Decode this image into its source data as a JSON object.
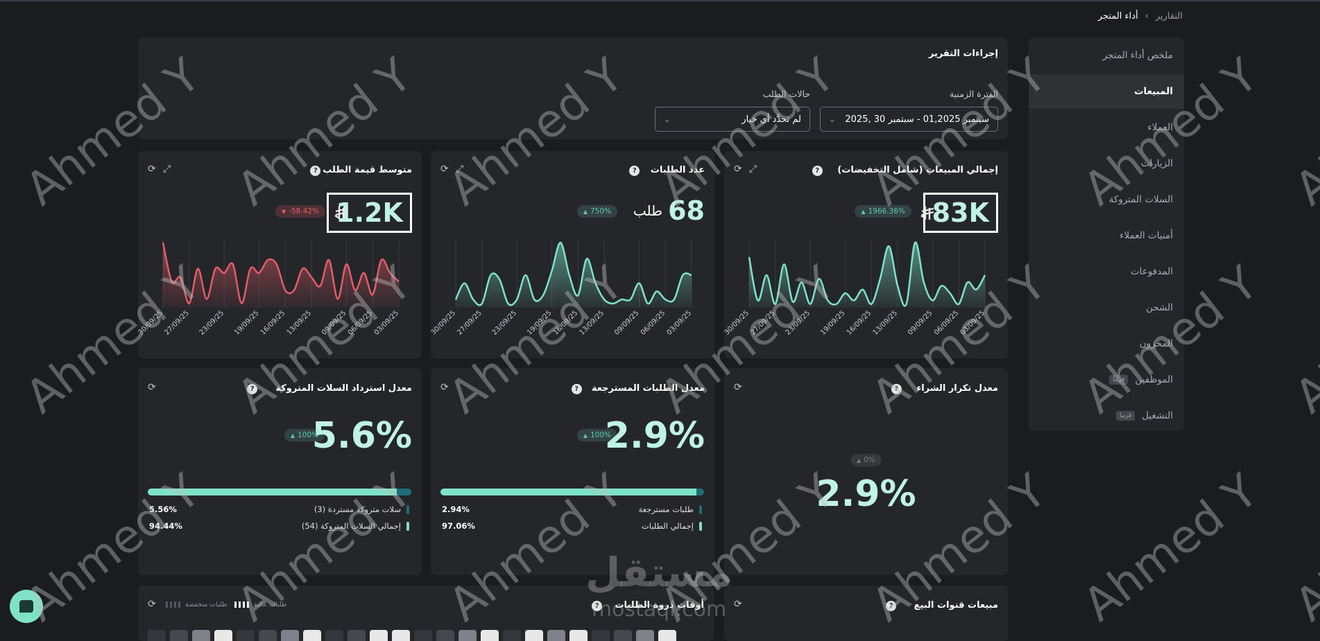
{
  "breadcrumb": [
    "التقارير",
    "أداء المتجر"
  ],
  "sidebar": {
    "items": [
      {
        "label": "ملخص أداء المتجر",
        "active": false
      },
      {
        "label": "المبيعات",
        "active": true
      },
      {
        "label": "العملاء",
        "active": false
      },
      {
        "label": "الزيارات",
        "active": false
      },
      {
        "label": "السلات المتروكة",
        "active": false
      },
      {
        "label": "أمنيات العملاء",
        "active": false
      },
      {
        "label": "المدفوعات",
        "active": false
      },
      {
        "label": "الشحن",
        "active": false
      },
      {
        "label": "المخزون",
        "active": false
      },
      {
        "label": "الموظفين",
        "active": false,
        "badge": "قريبا"
      },
      {
        "label": "التشغيل",
        "active": false,
        "badge": "قريبا"
      }
    ]
  },
  "report_actions": {
    "title": "إجراءات التقرير",
    "period_label": "الفترة الزمنية",
    "period_value": "سبتمبر 01,2025 - سبتمبر 30 ,2025",
    "status_label": "حالات الطلب",
    "status_value": "لم تحدَّد أي خيار"
  },
  "kpi_cards": [
    {
      "title": "إجمالي المبيعات (شامل التخفيضات)",
      "value": "83K",
      "currency": true,
      "change": "1966.36%",
      "trend": "up",
      "highlight": true,
      "chart": {
        "type": "line",
        "color": "#7ee3c6",
        "categories": [
          "30/09/25",
          null,
          null,
          "27/09/25",
          null,
          null,
          null,
          "23/09/25",
          null,
          null,
          null,
          "19/09/25",
          null,
          null,
          "16/09/25",
          null,
          null,
          "13/09/25",
          null,
          null,
          null,
          "09/09/25",
          null,
          null,
          "06/09/25",
          null,
          null,
          "03/09/25"
        ],
        "values": [
          70,
          10,
          45,
          5,
          60,
          8,
          35,
          5,
          40,
          10,
          5,
          20,
          10,
          25,
          5,
          40,
          85,
          30,
          5,
          90,
          35,
          10,
          30,
          20,
          5,
          35,
          25,
          45
        ]
      }
    },
    {
      "title": "عدد الطلبات",
      "value": "68",
      "unit": "طلب",
      "currency": false,
      "change": "750%",
      "trend": "up",
      "highlight": false,
      "chart": {
        "type": "line",
        "color": "#7ee3c6",
        "categories": [
          "30/09/25",
          null,
          null,
          "27/09/25",
          null,
          null,
          null,
          "23/09/25",
          null,
          null,
          null,
          "19/09/25",
          null,
          null,
          "16/09/25",
          null,
          null,
          "13/09/25",
          null,
          null,
          null,
          "09/09/25",
          null,
          null,
          "06/09/25",
          null,
          null,
          "03/09/25"
        ],
        "values": [
          10,
          30,
          10,
          5,
          40,
          35,
          5,
          10,
          40,
          10,
          15,
          45,
          80,
          40,
          15,
          60,
          30,
          10,
          5,
          10,
          10,
          30,
          5,
          20,
          10,
          10,
          40,
          40
        ]
      }
    },
    {
      "title": "متوسط قيمة الطلب",
      "value": "1.2K",
      "currency": true,
      "change": "-58.42%",
      "trend": "down",
      "highlight": true,
      "chart": {
        "type": "line",
        "color": "#e35d68",
        "categories": [
          "30/09/25",
          null,
          null,
          "27/09/25",
          null,
          null,
          null,
          "23/09/25",
          null,
          null,
          null,
          "19/09/25",
          null,
          null,
          "16/09/25",
          null,
          null,
          "13/09/25",
          null,
          null,
          null,
          "09/09/25",
          null,
          null,
          "06/09/25",
          null,
          null,
          "03/09/25"
        ],
        "values": [
          75,
          30,
          35,
          5,
          45,
          10,
          45,
          40,
          50,
          5,
          45,
          40,
          55,
          50,
          20,
          20,
          45,
          35,
          25,
          55,
          10,
          50,
          20,
          40,
          15,
          55,
          40,
          30
        ]
      }
    }
  ],
  "rate_cards": [
    {
      "title": "معدل تكرار الشراء",
      "value": "2.9%",
      "change": "0%",
      "trend": "flat"
    },
    {
      "title": "معدل الطلبات المسترجعة",
      "value": "2.9%",
      "change": "100%",
      "trend": "up",
      "segments": [
        {
          "label": "طلبات مسترجعة",
          "value": 2.94,
          "value_label": "2.94%",
          "color": "#1f6e78"
        },
        {
          "label": "إجمالي الطلبات",
          "value": 97.06,
          "value_label": "97.06%",
          "color": "#7ee3c6"
        }
      ]
    },
    {
      "title": "معدل استرداد السلات المتروكة",
      "value": "5.6%",
      "change": "100%",
      "trend": "up",
      "segments": [
        {
          "label": "سلات متروكة مستردة (3)",
          "value": 5.56,
          "value_label": "5.56%",
          "color": "#1f6e78"
        },
        {
          "label": "إجمالي السلات المتروكة (54)",
          "value": 94.44,
          "value_label": "94.44%",
          "color": "#7ee3c6"
        }
      ]
    }
  ],
  "bottom_cards": [
    {
      "title": "مبيعات قنوات البيع"
    },
    {
      "title": "أوقات ذروة الطلبات",
      "legend": [
        "طلبات عالية",
        "طلبات منخفضة"
      ]
    }
  ],
  "watermark": "Ahmed Y",
  "logo": {
    "arabic": "مستقل",
    "latin": "mostaql.com"
  }
}
